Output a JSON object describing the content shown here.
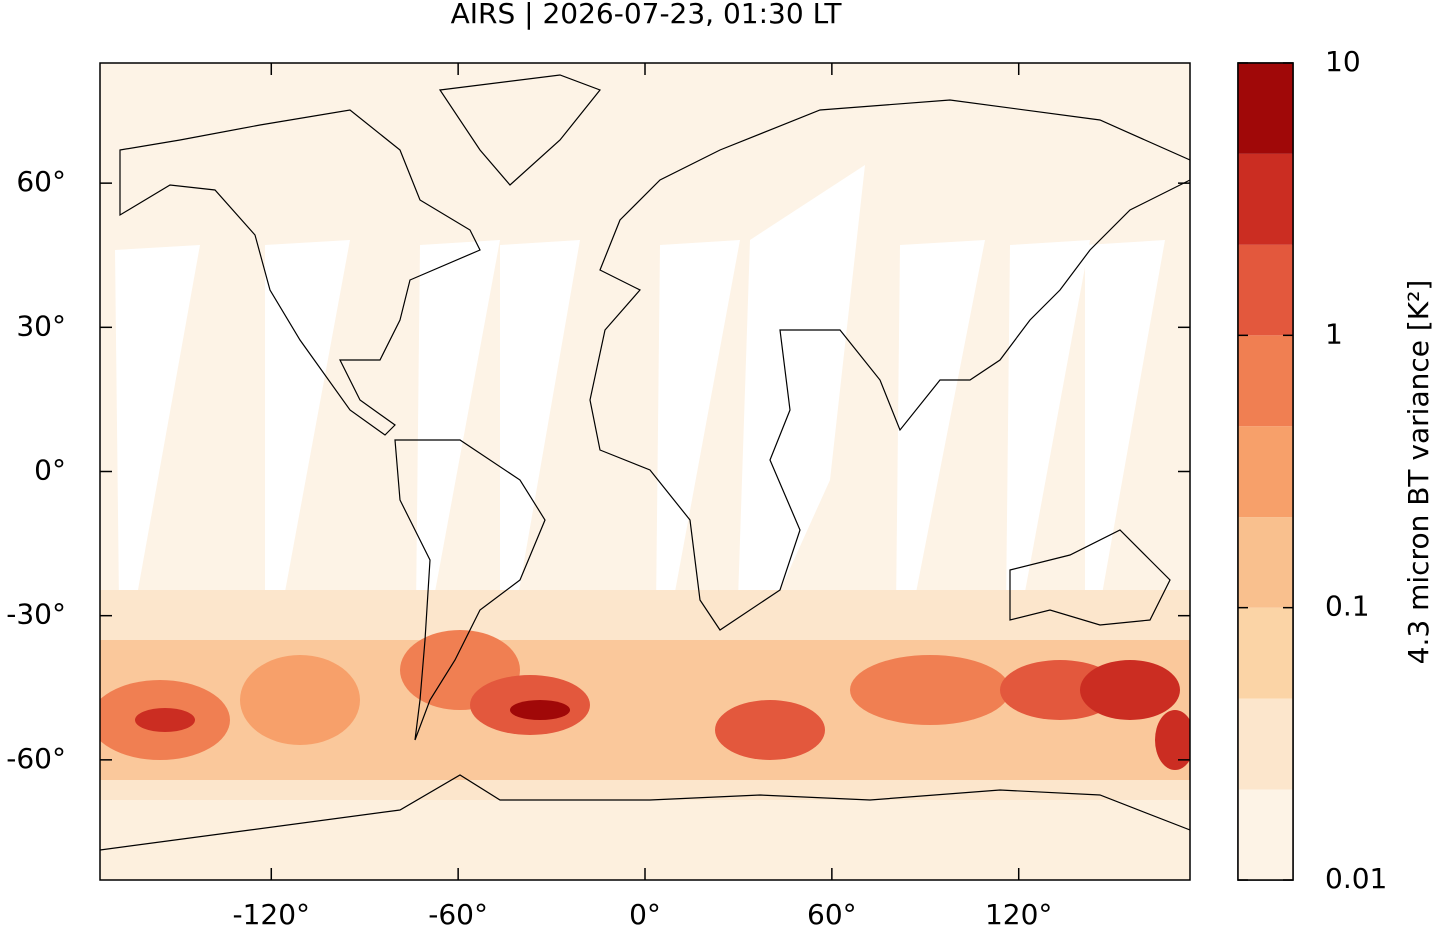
{
  "chart_data": {
    "type": "map",
    "title": "AIRS | 2026-07-23, 01:30 LT",
    "xlim": [
      -175,
      175
    ],
    "ylim": [
      -85,
      85
    ],
    "xticks": [
      {
        "value": -120,
        "label": "-120°"
      },
      {
        "value": -60,
        "label": "-60°"
      },
      {
        "value": 0,
        "label": "0°"
      },
      {
        "value": 60,
        "label": "60°"
      },
      {
        "value": 120,
        "label": "120°"
      }
    ],
    "yticks": [
      {
        "value": -60,
        "label": "-60°"
      },
      {
        "value": -30,
        "label": "-30°"
      },
      {
        "value": 0,
        "label": "0°"
      },
      {
        "value": 30,
        "label": "30°"
      },
      {
        "value": 60,
        "label": "60°"
      }
    ],
    "colorbar": {
      "label": "4.3 micron BT variance [K²]",
      "scale": "log",
      "lim": [
        0.01,
        10
      ],
      "ticks": [
        0.01,
        0.1,
        1,
        10
      ],
      "levels": [
        0.01,
        0.0215,
        0.0464,
        0.1,
        0.215,
        0.464,
        1,
        2.15,
        4.64,
        10
      ],
      "colors": [
        "#fdf3e6",
        "#fce6cc",
        "#fbd4a6",
        "#f9c08e",
        "#f7a06a",
        "#f07f52",
        "#e3583d",
        "#cb2d22",
        "#a00808"
      ]
    }
  }
}
